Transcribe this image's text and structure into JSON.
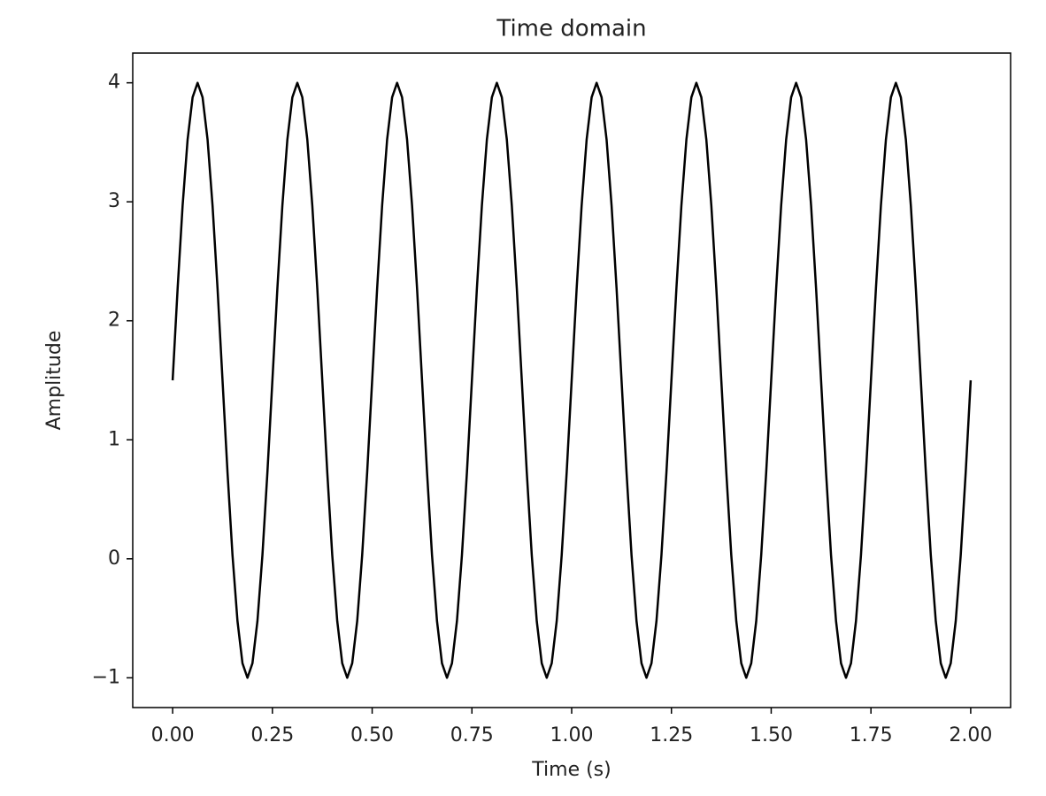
{
  "chart_data": {
    "type": "line",
    "title": "Time domain",
    "xlabel": "Time (s)",
    "ylabel": "Amplitude",
    "color": "#000000",
    "x": [
      0,
      0.0125,
      0.025,
      0.0375,
      0.05,
      0.0625,
      0.075,
      0.0875,
      0.1,
      0.1125,
      0.125,
      0.1375,
      0.15,
      0.1625,
      0.175,
      0.1875,
      0.2,
      0.2125,
      0.225,
      0.2375,
      0.25,
      0.2625,
      0.275,
      0.2875,
      0.3,
      0.3125,
      0.325,
      0.3375,
      0.35,
      0.3625,
      0.375,
      0.3875,
      0.4,
      0.4125,
      0.425,
      0.4375,
      0.45,
      0.4625,
      0.475,
      0.4875,
      0.5,
      0.5125,
      0.525,
      0.5375,
      0.55,
      0.5625,
      0.575,
      0.5875,
      0.6,
      0.6125,
      0.625,
      0.6375,
      0.65,
      0.6625,
      0.675,
      0.6875,
      0.7,
      0.7125,
      0.725,
      0.7375,
      0.75,
      0.7625,
      0.775,
      0.7875,
      0.8,
      0.8125,
      0.825,
      0.8375,
      0.85,
      0.8625,
      0.875,
      0.8875,
      0.9,
      0.9125,
      0.925,
      0.9375,
      0.95,
      0.9625,
      0.975,
      0.9875,
      1,
      1.0125,
      1.025,
      1.0375,
      1.05,
      1.0625,
      1.075,
      1.0875,
      1.1,
      1.1125,
      1.125,
      1.1375,
      1.15,
      1.1625,
      1.175,
      1.1875,
      1.2,
      1.2125,
      1.225,
      1.2375,
      1.25,
      1.2625,
      1.275,
      1.2875,
      1.3,
      1.3125,
      1.325,
      1.3375,
      1.35,
      1.3625,
      1.375,
      1.3875,
      1.4,
      1.4125,
      1.425,
      1.4375,
      1.45,
      1.4625,
      1.475,
      1.4875,
      1.5,
      1.5125,
      1.525,
      1.5375,
      1.55,
      1.5625,
      1.575,
      1.5875,
      1.6,
      1.6125,
      1.625,
      1.6375,
      1.65,
      1.6625,
      1.675,
      1.6875,
      1.7,
      1.7125,
      1.725,
      1.7375,
      1.75,
      1.7625,
      1.775,
      1.7875,
      1.8,
      1.8125,
      1.825,
      1.8375,
      1.85,
      1.8625,
      1.875,
      1.8875,
      1.9,
      1.9125,
      1.925,
      1.9375,
      1.95,
      1.9625,
      1.975,
      1.9875,
      2
    ],
    "values": [
      1.5,
      2.273,
      2.969,
      3.523,
      3.878,
      4,
      3.878,
      3.523,
      2.969,
      2.273,
      1.5,
      0.727,
      0.031,
      -0.523,
      -0.878,
      -1,
      -0.878,
      -0.523,
      0.031,
      0.727,
      1.5,
      2.273,
      2.969,
      3.523,
      3.878,
      4,
      3.878,
      3.523,
      2.969,
      2.273,
      1.5,
      0.727,
      0.031,
      -0.523,
      -0.878,
      -1,
      -0.878,
      -0.523,
      0.031,
      0.727,
      1.5,
      2.273,
      2.969,
      3.523,
      3.878,
      4,
      3.878,
      3.523,
      2.969,
      2.273,
      1.5,
      0.727,
      0.031,
      -0.523,
      -0.878,
      -1,
      -0.878,
      -0.523,
      0.031,
      0.727,
      1.5,
      2.273,
      2.969,
      3.523,
      3.878,
      4,
      3.878,
      3.523,
      2.969,
      2.273,
      1.5,
      0.727,
      0.031,
      -0.523,
      -0.878,
      -1,
      -0.878,
      -0.523,
      0.031,
      0.727,
      1.5,
      2.273,
      2.969,
      3.523,
      3.878,
      4,
      3.878,
      3.523,
      2.969,
      2.273,
      1.5,
      0.727,
      0.031,
      -0.523,
      -0.878,
      -1,
      -0.878,
      -0.523,
      0.031,
      0.727,
      1.5,
      2.273,
      2.969,
      3.523,
      3.878,
      4,
      3.878,
      3.523,
      2.969,
      2.273,
      1.5,
      0.727,
      0.031,
      -0.523,
      -0.878,
      -1,
      -0.878,
      -0.523,
      0.031,
      0.727,
      1.5,
      2.273,
      2.969,
      3.523,
      3.878,
      4,
      3.878,
      3.523,
      2.969,
      2.273,
      1.5,
      0.727,
      0.031,
      -0.523,
      -0.878,
      -1,
      -0.878,
      -0.523,
      0.031,
      0.727,
      1.5,
      2.273,
      2.969,
      3.523,
      3.878,
      4,
      3.878,
      3.523,
      2.969,
      2.273,
      1.5,
      0.727,
      0.031,
      -0.523,
      -0.878,
      -1,
      -0.878,
      -0.523,
      0.031,
      0.727,
      1.5
    ],
    "xlim": [
      -0.1,
      2.1
    ],
    "ylim": [
      -1.25,
      4.25
    ],
    "xticks": [
      {
        "value": 0,
        "label": "0.00"
      },
      {
        "value": 0.25,
        "label": "0.25"
      },
      {
        "value": 0.5,
        "label": "0.50"
      },
      {
        "value": 0.75,
        "label": "0.75"
      },
      {
        "value": 1,
        "label": "1.00"
      },
      {
        "value": 1.25,
        "label": "1.25"
      },
      {
        "value": 1.5,
        "label": "1.50"
      },
      {
        "value": 1.75,
        "label": "1.75"
      },
      {
        "value": 2,
        "label": "2.00"
      }
    ],
    "yticks": [
      {
        "value": -1,
        "label": "−1"
      },
      0,
      1,
      2,
      3,
      4
    ],
    "grid": false
  }
}
